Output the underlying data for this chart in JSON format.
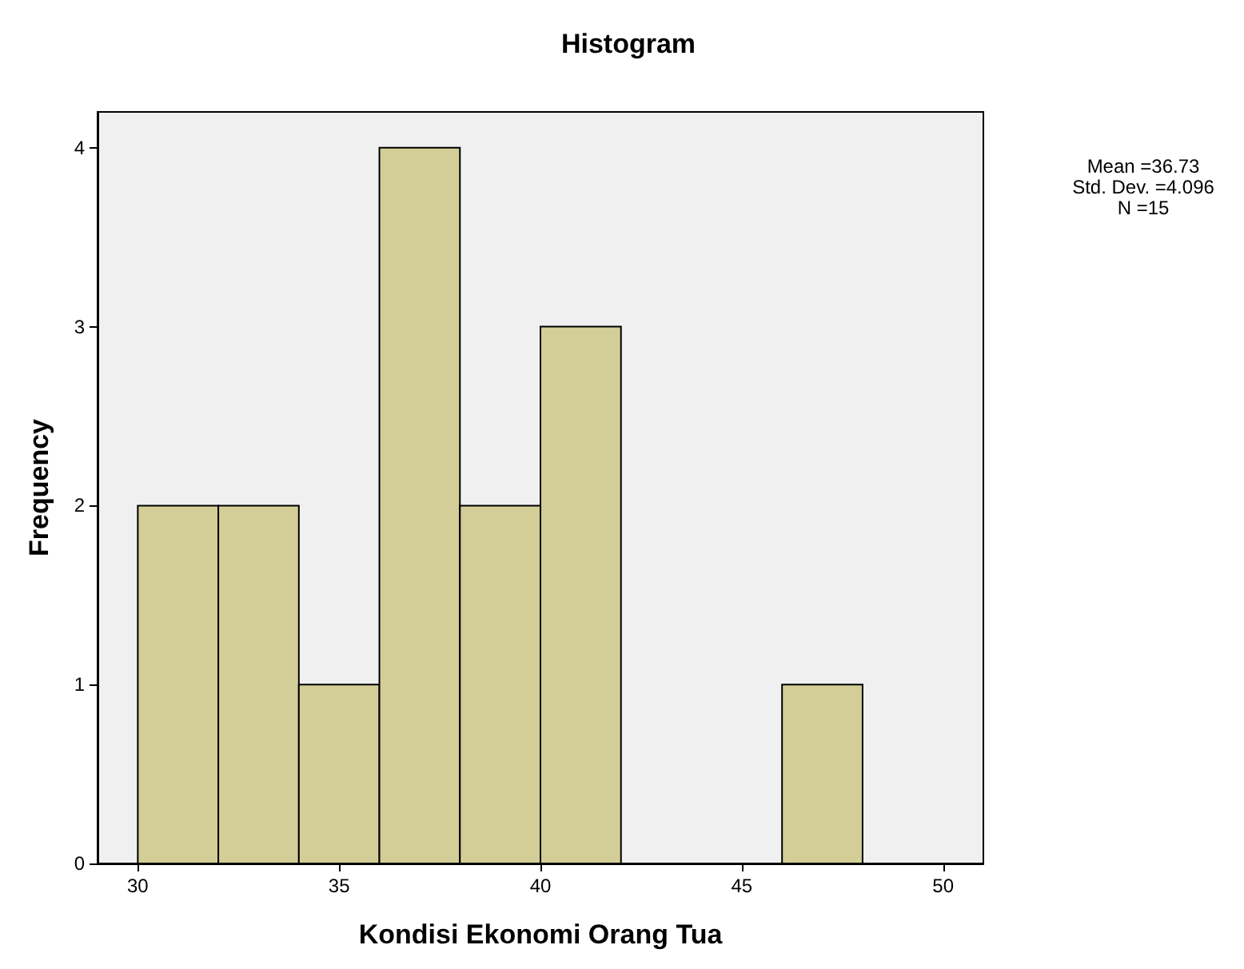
{
  "chart_data": {
    "type": "histogram",
    "title": "Histogram",
    "xlabel": "Kondisi Ekonomi Orang Tua",
    "ylabel": "Frequency",
    "bins": [
      30,
      32,
      34,
      36,
      38,
      40,
      42,
      44,
      46,
      48
    ],
    "values": [
      2,
      2,
      1,
      4,
      2,
      3,
      0,
      0,
      1
    ],
    "color": "#d3ce97",
    "xlim": [
      29,
      51
    ],
    "xticks": [
      30,
      35,
      40,
      45,
      50
    ],
    "ylim": [
      0,
      4.2
    ],
    "yticks": [
      0,
      1,
      2,
      3,
      4
    ],
    "grid": false,
    "annotations": [
      "Mean =36.73",
      "Std. Dev. =4.096",
      "N =15"
    ]
  }
}
